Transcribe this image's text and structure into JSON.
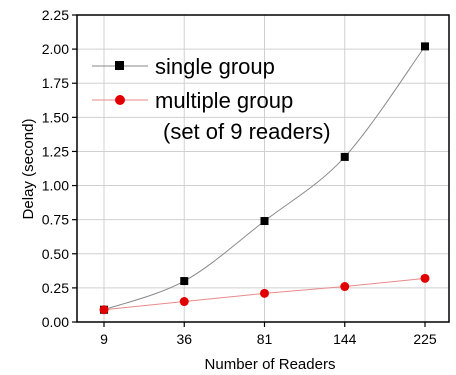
{
  "chart_data": {
    "type": "line",
    "title": "",
    "xlabel": "Number of Readers",
    "ylabel": "Delay (second)",
    "categories": [
      "9",
      "36",
      "81",
      "144",
      "225"
    ],
    "ylim": [
      0,
      2.25
    ],
    "yticks": [
      "0.00",
      "0.25",
      "0.50",
      "0.75",
      "1.00",
      "1.25",
      "1.50",
      "1.75",
      "2.00",
      "2.25"
    ],
    "grid": true,
    "legend_position": "top-left",
    "series": [
      {
        "name": "single group",
        "color": "#000000",
        "line_color": "#8a8a8a",
        "marker": "square",
        "values": [
          0.09,
          0.3,
          0.74,
          1.21,
          2.02
        ]
      },
      {
        "name": "multiple group",
        "color": "#e00000",
        "line_color": "#e88a8a",
        "marker": "circle",
        "values": [
          0.09,
          0.15,
          0.21,
          0.26,
          0.32
        ]
      }
    ],
    "annotation": "(set of 9 readers)"
  }
}
